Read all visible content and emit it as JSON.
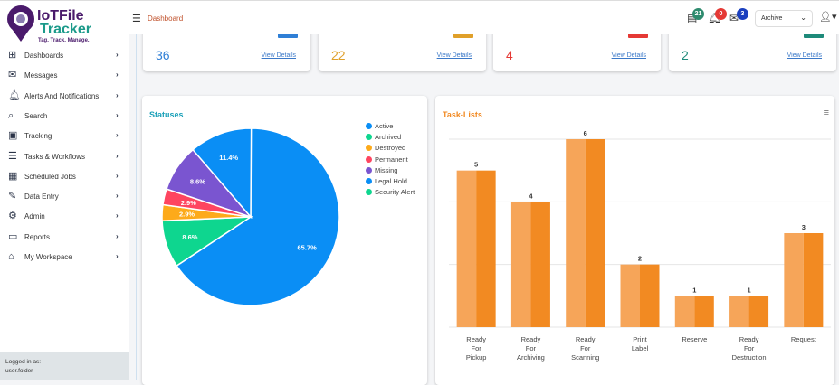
{
  "header": {
    "brand": {
      "line1": "IoTFile",
      "line2": "Tracker",
      "tagline": "Tag. Track. Manage."
    },
    "breadcrumb": "Dashboard",
    "badges": {
      "tasks": "21",
      "alerts": "0",
      "messages": "3"
    },
    "badge_colors": {
      "tasks": "#2e8b6e",
      "alerts": "#e53935",
      "messages": "#1a3fbf"
    },
    "archive_select": "Archive"
  },
  "sidebar": {
    "items": [
      {
        "label": "Dashboards",
        "icon": "dashboard-icon"
      },
      {
        "label": "Messages",
        "icon": "mail-icon"
      },
      {
        "label": "Alerts And Notifications",
        "icon": "bell-icon"
      },
      {
        "label": "Search",
        "icon": "search-icon"
      },
      {
        "label": "Tracking",
        "icon": "tracking-icon"
      },
      {
        "label": "Tasks & Workflows",
        "icon": "tasks-icon"
      },
      {
        "label": "Scheduled Jobs",
        "icon": "grid-icon"
      },
      {
        "label": "Data Entry",
        "icon": "data-entry-icon"
      },
      {
        "label": "Admin",
        "icon": "gear-icon"
      },
      {
        "label": "Reports",
        "icon": "reports-icon"
      },
      {
        "label": "My Workspace",
        "icon": "home-icon"
      }
    ],
    "logged_in_label": "Logged in as:",
    "user": "user.folder"
  },
  "cards": [
    {
      "value": "36",
      "link": "View Details",
      "color": "#2f7fd6"
    },
    {
      "value": "22",
      "link": "View Details",
      "color": "#e0a02a"
    },
    {
      "value": "4",
      "link": "View Details",
      "color": "#e53935"
    },
    {
      "value": "2",
      "link": "View Details",
      "color": "#1e8a7a"
    }
  ],
  "chart_data": [
    {
      "type": "pie",
      "title": "Statuses",
      "legend_position": "right",
      "slices": [
        {
          "label": "Active",
          "value": 65.7,
          "color": "#0a8ef5"
        },
        {
          "label": "Archived",
          "value": 8.6,
          "color": "#0ed68f"
        },
        {
          "label": "Destroyed",
          "value": 2.9,
          "color": "#fdaa1a"
        },
        {
          "label": "Permanent",
          "value": 2.9,
          "color": "#fe4560"
        },
        {
          "label": "Missing",
          "value": 8.6,
          "color": "#7a55d0"
        },
        {
          "label": "Legal Hold",
          "value": 11.4,
          "color": "#0a8ef5"
        },
        {
          "label": "Security Alert",
          "value": 0,
          "color": "#0ed68f"
        }
      ],
      "data_labels": [
        "65.7%",
        "8.6%",
        "2.9%",
        "2.9%",
        "8.6%",
        "11.4%"
      ]
    },
    {
      "type": "bar",
      "title": "Task-Lists",
      "categories": [
        [
          "Ready",
          "For",
          "Pickup"
        ],
        [
          "Ready",
          "For",
          "Archiving"
        ],
        [
          "Ready",
          "For",
          "Scanning"
        ],
        [
          "Print",
          "Label"
        ],
        [
          "Reserve"
        ],
        [
          "Ready",
          "For",
          "Destruction"
        ],
        [
          "Request"
        ]
      ],
      "values": [
        5,
        4,
        6,
        2,
        1,
        1,
        3
      ],
      "ylim": [
        0,
        6
      ],
      "grid": true,
      "color": "#f28a22"
    }
  ]
}
